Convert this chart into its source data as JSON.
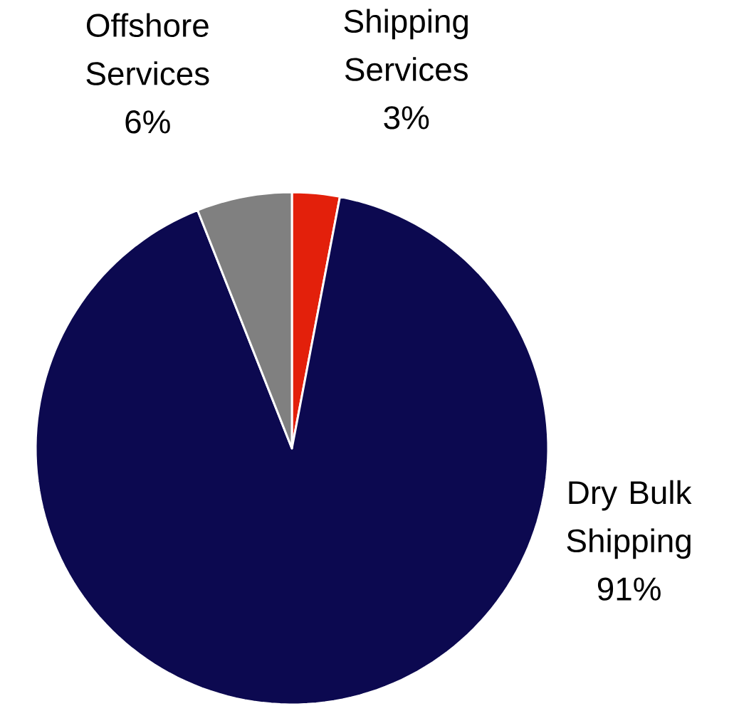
{
  "chart_data": {
    "type": "pie",
    "categories": [
      "Shipping Services",
      "Dry Bulk Shipping",
      "Offshore Services"
    ],
    "values": [
      3,
      91,
      6
    ],
    "colors": [
      "#e3200b",
      "#0c0950",
      "#808080"
    ],
    "value_labels": [
      "3%",
      "91%",
      "6%"
    ]
  }
}
